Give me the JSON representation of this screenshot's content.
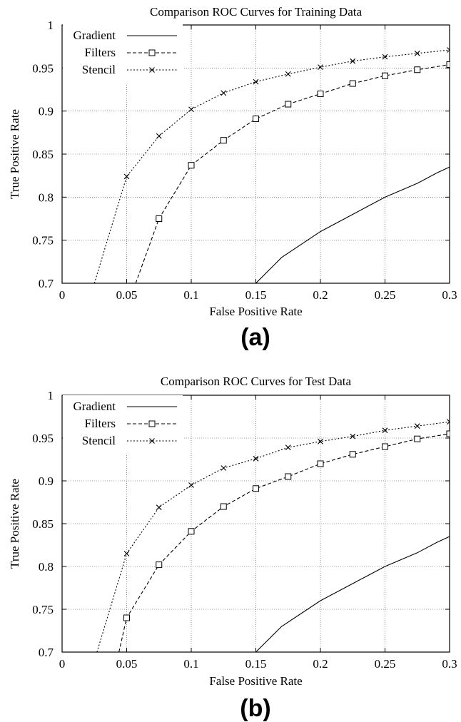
{
  "chart_data": [
    {
      "panel": "(a)",
      "type": "line",
      "title": "Comparison ROC Curves for Training Data",
      "xlabel": "False Positive Rate",
      "ylabel": "True Positive Rate",
      "xlim": [
        0,
        0.3
      ],
      "ylim": [
        0.7,
        1
      ],
      "grid": true,
      "legend": "top-left",
      "xticks": [
        "0",
        "0.05",
        "0.1",
        "0.15",
        "0.2",
        "0.25",
        "0.3"
      ],
      "yticks": [
        "0.7",
        "0.75",
        "0.8",
        "0.85",
        "0.9",
        "0.95",
        "1"
      ],
      "series": [
        {
          "name": "Gradient",
          "style": "solid",
          "marker": "none",
          "points": [
            [
              0.15,
              0.7
            ],
            [
              0.17,
              0.73
            ],
            [
              0.2,
              0.76
            ],
            [
              0.225,
              0.78
            ],
            [
              0.25,
              0.8
            ],
            [
              0.275,
              0.816
            ],
            [
              0.29,
              0.828
            ],
            [
              0.3,
              0.835
            ]
          ]
        },
        {
          "name": "Filters",
          "style": "dashed",
          "marker": "square",
          "points": [
            [
              0.057,
              0.7
            ],
            [
              0.075,
              0.775
            ],
            [
              0.1,
              0.837
            ],
            [
              0.125,
              0.866
            ],
            [
              0.15,
              0.891
            ],
            [
              0.175,
              0.908
            ],
            [
              0.2,
              0.92
            ],
            [
              0.225,
              0.932
            ],
            [
              0.25,
              0.941
            ],
            [
              0.275,
              0.948
            ],
            [
              0.3,
              0.954
            ]
          ]
        },
        {
          "name": "Stencil",
          "style": "dotted",
          "marker": "x",
          "points": [
            [
              0.025,
              0.7
            ],
            [
              0.05,
              0.824
            ],
            [
              0.075,
              0.871
            ],
            [
              0.1,
              0.902
            ],
            [
              0.125,
              0.921
            ],
            [
              0.15,
              0.934
            ],
            [
              0.175,
              0.943
            ],
            [
              0.2,
              0.951
            ],
            [
              0.225,
              0.958
            ],
            [
              0.25,
              0.963
            ],
            [
              0.275,
              0.967
            ],
            [
              0.3,
              0.971
            ]
          ]
        }
      ]
    },
    {
      "panel": "(b)",
      "type": "line",
      "title": "Comparison ROC Curves for Test Data",
      "xlabel": "False Positive Rate",
      "ylabel": "True Positive Rate",
      "xlim": [
        0,
        0.3
      ],
      "ylim": [
        0.7,
        1
      ],
      "grid": true,
      "legend": "top-left",
      "xticks": [
        "0",
        "0.05",
        "0.1",
        "0.15",
        "0.2",
        "0.25",
        "0.3"
      ],
      "yticks": [
        "0.7",
        "0.75",
        "0.8",
        "0.85",
        "0.9",
        "0.95",
        "1"
      ],
      "series": [
        {
          "name": "Gradient",
          "style": "solid",
          "marker": "none",
          "points": [
            [
              0.15,
              0.7
            ],
            [
              0.17,
              0.73
            ],
            [
              0.2,
              0.76
            ],
            [
              0.225,
              0.78
            ],
            [
              0.25,
              0.8
            ],
            [
              0.275,
              0.816
            ],
            [
              0.29,
              0.828
            ],
            [
              0.3,
              0.835
            ]
          ]
        },
        {
          "name": "Filters",
          "style": "dashed",
          "marker": "square",
          "points": [
            [
              0.044,
              0.7
            ],
            [
              0.05,
              0.74
            ],
            [
              0.075,
              0.802
            ],
            [
              0.1,
              0.841
            ],
            [
              0.125,
              0.87
            ],
            [
              0.15,
              0.891
            ],
            [
              0.175,
              0.905
            ],
            [
              0.2,
              0.92
            ],
            [
              0.225,
              0.931
            ],
            [
              0.25,
              0.94
            ],
            [
              0.275,
              0.949
            ],
            [
              0.3,
              0.955
            ]
          ]
        },
        {
          "name": "Stencil",
          "style": "dotted",
          "marker": "x",
          "points": [
            [
              0.027,
              0.7
            ],
            [
              0.05,
              0.815
            ],
            [
              0.075,
              0.869
            ],
            [
              0.1,
              0.895
            ],
            [
              0.125,
              0.915
            ],
            [
              0.15,
              0.926
            ],
            [
              0.175,
              0.939
            ],
            [
              0.2,
              0.946
            ],
            [
              0.225,
              0.952
            ],
            [
              0.25,
              0.959
            ],
            [
              0.275,
              0.964
            ],
            [
              0.3,
              0.969
            ]
          ]
        }
      ]
    }
  ]
}
